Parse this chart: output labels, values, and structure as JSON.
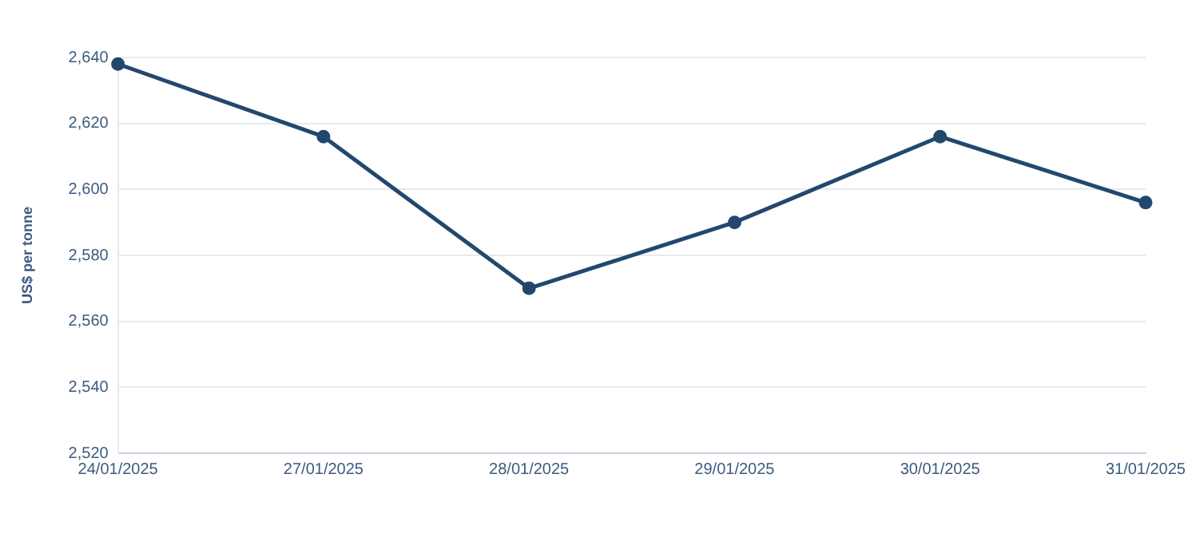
{
  "chart_data": {
    "type": "line",
    "ylabel": "US$ per tonne",
    "categories": [
      "24/01/2025",
      "27/01/2025",
      "28/01/2025",
      "29/01/2025",
      "30/01/2025",
      "31/01/2025"
    ],
    "series": [
      {
        "color": "#23486e",
        "values": [
          2638,
          2616,
          2570,
          2590,
          2616,
          2596
        ]
      }
    ],
    "ylim": [
      2520,
      2640
    ],
    "yticks": [
      {
        "value": 2520,
        "label": "2,520"
      },
      {
        "value": 2540,
        "label": "2,540"
      },
      {
        "value": 2560,
        "label": "2,560"
      },
      {
        "value": 2580,
        "label": "2,580"
      },
      {
        "value": 2600,
        "label": "2,600"
      },
      {
        "value": 2620,
        "label": "2,620"
      },
      {
        "value": 2640,
        "label": "2,640"
      }
    ],
    "grid": "y",
    "legend": false,
    "marker": "circle",
    "line_style": "solid"
  }
}
